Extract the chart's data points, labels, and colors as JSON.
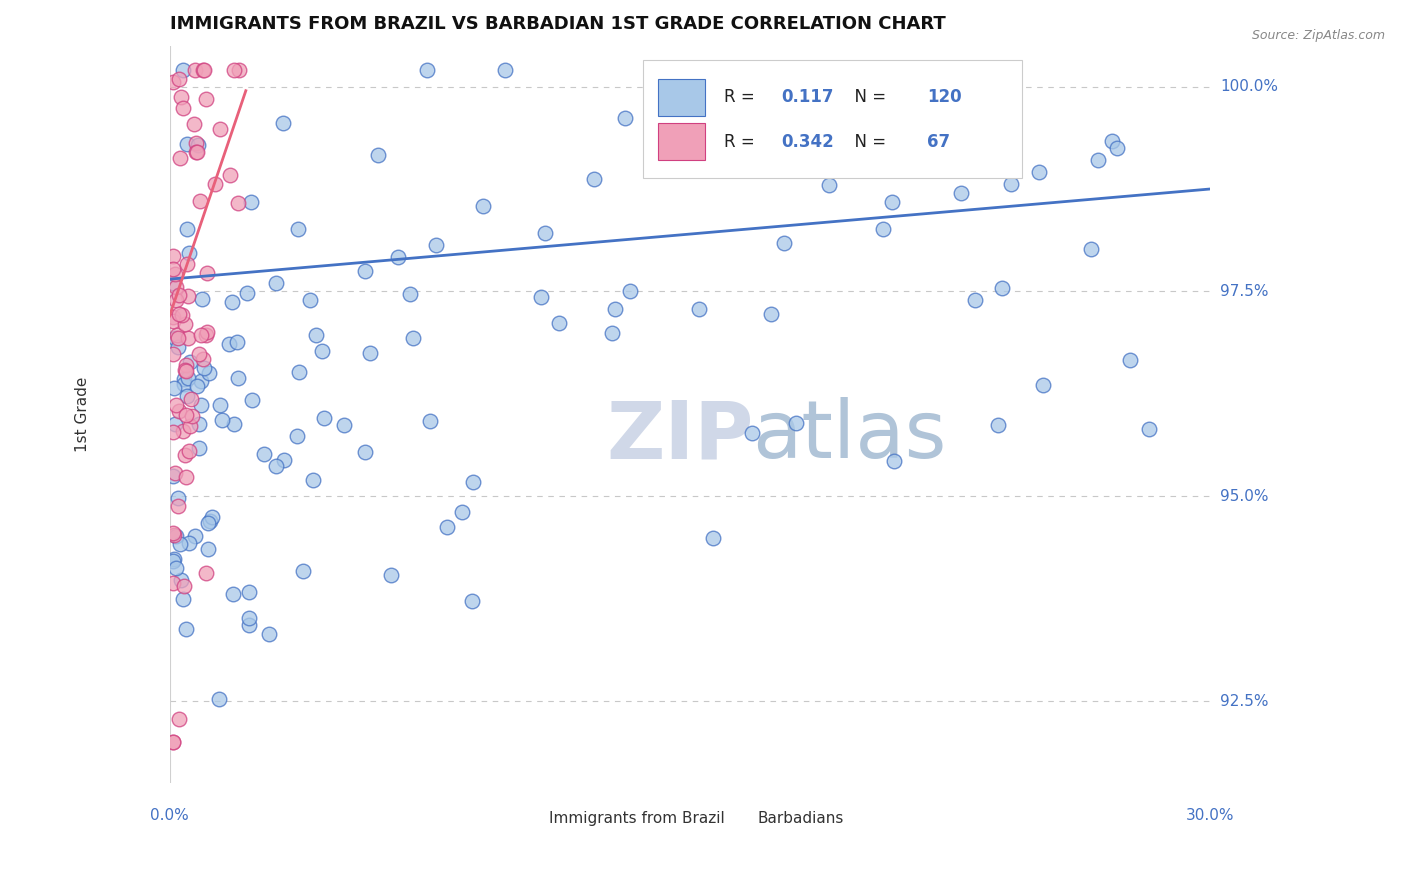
{
  "title": "IMMIGRANTS FROM BRAZIL VS BARBADIAN 1ST GRADE CORRELATION CHART",
  "source_text": "Source: ZipAtlas.com",
  "ylabel": "1st Grade",
  "xlim": [
    0.0,
    0.3
  ],
  "ylim": [
    0.915,
    1.005
  ],
  "yticks": [
    0.925,
    0.95,
    0.975,
    1.0
  ],
  "yticklabels": [
    "92.5%",
    "95.0%",
    "97.5%",
    "100.0%"
  ],
  "title_fontsize": 13,
  "tick_color": "#4472c4",
  "blue_scatter_color": "#a8c8e8",
  "blue_edge_color": "#4472c4",
  "pink_scatter_color": "#f0a0b8",
  "pink_edge_color": "#d04080",
  "blue_line_color": "#4472c4",
  "pink_line_color": "#e8607a",
  "legend_R_brazil": "0.117",
  "legend_N_brazil": "120",
  "legend_R_barbadian": "0.342",
  "legend_N_barbadian": "67",
  "legend_value_color": "#4472c4",
  "watermark_zip": "ZIP",
  "watermark_atlas": "atlas",
  "watermark_color_zip": "#d0d8e8",
  "watermark_color_atlas": "#b0c4d8",
  "legend_label_brazil": "Immigrants from Brazil",
  "legend_label_barbadian": "Barbadians",
  "brazil_trend_x": [
    0.0,
    0.3
  ],
  "brazil_trend_y": [
    0.9765,
    0.9875
  ],
  "barbadian_trend_x": [
    0.0,
    0.022
  ],
  "barbadian_trend_y": [
    0.972,
    0.9995
  ]
}
